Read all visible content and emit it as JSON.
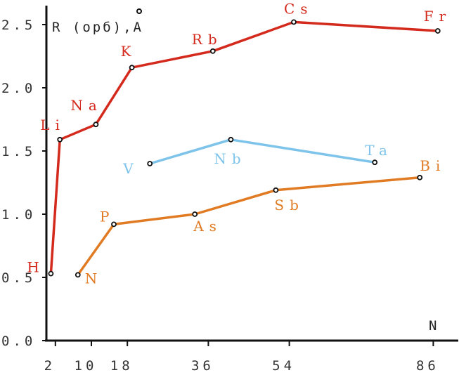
{
  "chart_data": {
    "type": "line",
    "ylabel": "R (орб),A",
    "xlabel": "N",
    "ylim": [
      0.0,
      2.5
    ],
    "xlim": [
      0,
      88
    ],
    "y_ticks": [
      "0.0",
      "0.5",
      "1.0",
      "1.5",
      "2.0",
      "2.5"
    ],
    "x_ticks": [
      "2",
      "10",
      "18",
      "36",
      "54",
      "86"
    ],
    "series": [
      {
        "color": "#d42a1e",
        "points": [
          {
            "label": "H",
            "x": 1,
            "y": 0.53
          },
          {
            "label": "Li",
            "x": 3,
            "y": 1.59
          },
          {
            "label": "Na",
            "x": 11,
            "y": 1.71
          },
          {
            "label": "K",
            "x": 19,
            "y": 2.16
          },
          {
            "label": "Rb",
            "x": 37,
            "y": 2.29
          },
          {
            "label": "Cs",
            "x": 55,
            "y": 2.52
          },
          {
            "label": "Fr",
            "x": 87,
            "y": 2.45
          }
        ]
      },
      {
        "color": "#7ec4ea",
        "points": [
          {
            "label": "V",
            "x": 23,
            "y": 1.4
          },
          {
            "label": "Nb",
            "x": 41,
            "y": 1.59
          },
          {
            "label": "Ta",
            "x": 73,
            "y": 1.41
          }
        ]
      },
      {
        "color": "#e07b24",
        "points": [
          {
            "label": "N",
            "x": 7,
            "y": 0.52
          },
          {
            "label": "P",
            "x": 15,
            "y": 0.92
          },
          {
            "label": "As",
            "x": 33,
            "y": 1.0
          },
          {
            "label": "Sb",
            "x": 51,
            "y": 1.19
          },
          {
            "label": "Bi",
            "x": 83,
            "y": 1.29
          }
        ]
      }
    ]
  }
}
